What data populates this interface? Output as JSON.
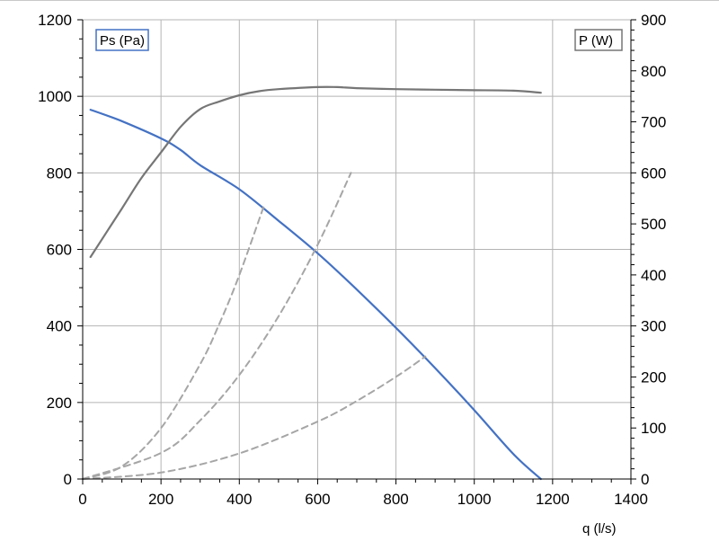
{
  "chart_data": {
    "type": "line",
    "xlabel": "q (l/s)",
    "x_ticks": [
      "0",
      "200",
      "400",
      "600",
      "800",
      "1000",
      "1200",
      "1400"
    ],
    "xlim": [
      0,
      1400
    ],
    "y_left_ticks": [
      "0",
      "200",
      "400",
      "600",
      "800",
      "1000",
      "1200"
    ],
    "ylim_left": [
      0,
      1200
    ],
    "y_right_ticks": [
      "0",
      "100",
      "200",
      "300",
      "400",
      "500",
      "600",
      "700",
      "800",
      "900"
    ],
    "ylim_right": [
      0,
      900
    ],
    "grid": true,
    "legend_left": "Ps (Pa)",
    "legend_right": "P (W)",
    "colors": {
      "ps": "#4472c4",
      "power": "#767676",
      "system": "#a6a6a6",
      "grid": "#b4b4b4"
    },
    "series": [
      {
        "name": "Ps (Pa)",
        "axis": "left",
        "style": "solid",
        "x": [
          20,
          100,
          200,
          250,
          300,
          400,
          500,
          600,
          700,
          800,
          900,
          1000,
          1100,
          1170
        ],
        "y": [
          965,
          935,
          890,
          860,
          820,
          757,
          675,
          590,
          495,
          395,
          290,
          180,
          65,
          0
        ]
      },
      {
        "name": "P (W)",
        "axis": "right",
        "style": "solid",
        "x": [
          20,
          100,
          150,
          200,
          250,
          300,
          350,
          400,
          450,
          500,
          600,
          650,
          700,
          800,
          900,
          1000,
          1100,
          1170
        ],
        "y": [
          435,
          530,
          590,
          640,
          690,
          725,
          740,
          752,
          760,
          764,
          768,
          768,
          766,
          764,
          763,
          762,
          761,
          757
        ]
      },
      {
        "axis": "left",
        "style": "dashed",
        "x": [
          0,
          100,
          200,
          300,
          350,
          400,
          465
        ],
        "y": [
          0,
          33,
          133,
          300,
          408,
          533,
          720
        ]
      },
      {
        "axis": "left",
        "style": "dashed",
        "x": [
          0,
          200,
          300,
          400,
          500,
          600,
          685
        ],
        "y": [
          0,
          68,
          153,
          272,
          425,
          612,
          800
        ]
      },
      {
        "axis": "left",
        "style": "dashed",
        "x": [
          0,
          200,
          400,
          600,
          700,
          800,
          875
        ],
        "y": [
          0,
          17,
          67,
          150,
          204,
          267,
          320
        ]
      }
    ]
  }
}
